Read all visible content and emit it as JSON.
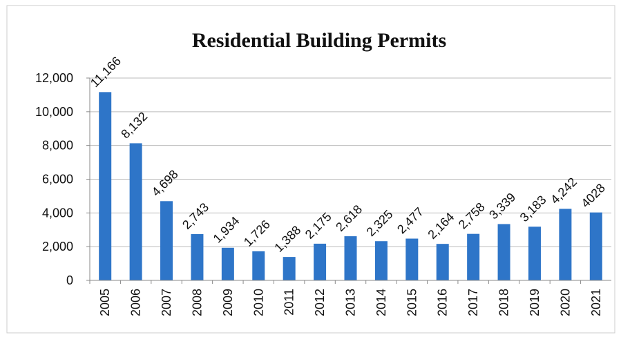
{
  "chart_data": {
    "type": "bar",
    "title": "Residential Building Permits",
    "categories": [
      "2005",
      "2006",
      "2007",
      "2008",
      "2009",
      "2010",
      "2011",
      "2012",
      "2013",
      "2014",
      "2015",
      "2016",
      "2017",
      "2018",
      "2019",
      "2020",
      "2021"
    ],
    "values": [
      11166,
      8132,
      4698,
      2743,
      1934,
      1726,
      1388,
      2175,
      2618,
      2325,
      2477,
      2164,
      2758,
      3339,
      3183,
      4242,
      4028
    ],
    "value_labels": [
      "11,166",
      "8,132",
      "4,698",
      "2,743",
      "1,934",
      "1,726",
      "1,388",
      "2,175",
      "2,618",
      "2,325",
      "2,477",
      "2,164",
      "2,758",
      "3,339",
      "3,183",
      "4,242",
      "4028"
    ],
    "color": "#2e75c8",
    "ylim": [
      0,
      12000
    ],
    "yticks": [
      0,
      {
        "value": 2000,
        "label": "2,000"
      },
      {
        "value": 4000,
        "label": "4,000"
      },
      {
        "value": 6000,
        "label": "6,000"
      },
      {
        "value": 8000,
        "label": "8,000"
      },
      {
        "value": 10000,
        "label": "10,000"
      },
      {
        "value": 12000,
        "label": "12,000"
      }
    ],
    "grid": true
  }
}
